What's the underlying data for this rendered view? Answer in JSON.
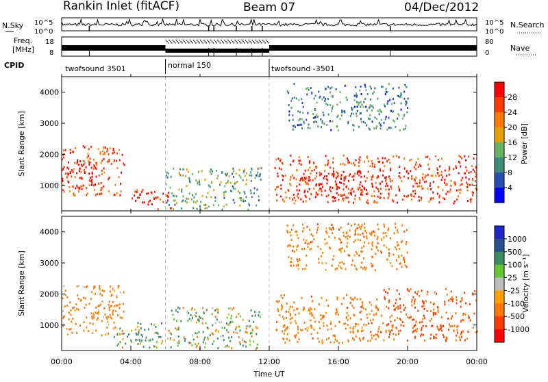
{
  "header": {
    "station": "Rankin Inlet (fitACF)",
    "beam": "Beam 07",
    "date": "04/Dec/2012"
  },
  "top_strip": {
    "nsky_label": "N.Sky",
    "nsearch_label": "N.Search",
    "left_ticks": [
      "10^5",
      "10^0"
    ],
    "right_ticks": [
      "10^5",
      "10^0"
    ]
  },
  "freq_strip": {
    "freq_label_1": "Freq.",
    "freq_label_2": "[MHz]",
    "nave_label": "Nave",
    "left_ticks": [
      "18",
      "8"
    ],
    "right_ticks": [
      "80",
      "0"
    ]
  },
  "cpid": {
    "label": "CPID",
    "segments": [
      {
        "name": "twofsound 3501",
        "start_hour": 0,
        "end_hour": 6
      },
      {
        "name": "normal 150",
        "start_hour": 6,
        "end_hour": 12
      },
      {
        "name": "twofsound -3501",
        "start_hour": 12,
        "end_hour": 24
      }
    ]
  },
  "power_panel": {
    "ylabel": "Slant Range [km]",
    "yticks": [
      "1000",
      "2000",
      "3000",
      "4000"
    ],
    "colorbar_label": "Power [dB]",
    "colorbar_ticks": [
      "4",
      "8",
      "12",
      "16",
      "20",
      "24",
      "28"
    ]
  },
  "velocity_panel": {
    "ylabel": "Slant Range [km]",
    "yticks": [
      "1000",
      "2000",
      "3000",
      "4000"
    ],
    "colorbar_label": "Velocity [m s⁻¹]",
    "colorbar_ticks": [
      "1000",
      "500",
      "100",
      "25",
      "-25",
      "-100",
      "-500",
      "-1000"
    ]
  },
  "xaxis": {
    "label": "Time UT",
    "ticks": [
      "00:00",
      "04:00",
      "08:00",
      "12:00",
      "16:00",
      "20:00",
      "00:00"
    ]
  },
  "colors": {
    "power_scale": [
      "#0000ff",
      "#2850b4",
      "#3c8c78",
      "#64b464",
      "#e6a000",
      "#ff7800",
      "#ff3c00",
      "#ff0000"
    ],
    "velocity_scale": [
      "#1e28c8",
      "#28508c",
      "#3c8c64",
      "#64c832",
      "#bebebe",
      "#ffa000",
      "#ff7800",
      "#ff3c00",
      "#ff0000"
    ]
  },
  "chart_data": [
    {
      "type": "heatmap",
      "title": "Power [dB]",
      "xlabel": "Time UT",
      "ylabel": "Slant Range [km]",
      "xlim": [
        0,
        24
      ],
      "ylim": [
        180,
        4500
      ],
      "zlim": [
        0,
        30
      ],
      "echo_regions": [
        {
          "t_start": 0.0,
          "t_end": 3.6,
          "r_start": 700,
          "r_end": 2300,
          "z": 24
        },
        {
          "t_start": 0.3,
          "t_end": 2.0,
          "r_start": 900,
          "r_end": 1900,
          "z": 28
        },
        {
          "t_start": 4.0,
          "t_end": 6.3,
          "r_start": 250,
          "r_end": 900,
          "z": 27
        },
        {
          "t_start": 6.0,
          "t_end": 11.5,
          "r_start": 250,
          "r_end": 1600,
          "z": 12
        },
        {
          "t_start": 12.3,
          "t_end": 24.0,
          "r_start": 450,
          "r_end": 2000,
          "z": 25
        },
        {
          "t_start": 14.0,
          "t_end": 19.0,
          "r_start": 600,
          "r_end": 1400,
          "z": 29
        },
        {
          "t_start": 13.0,
          "t_end": 20.0,
          "r_start": 2800,
          "r_end": 4300,
          "z": 9
        }
      ]
    },
    {
      "type": "heatmap",
      "title": "Velocity [m s⁻¹]",
      "xlabel": "Time UT",
      "ylabel": "Slant Range [km]",
      "xlim": [
        0,
        24
      ],
      "ylim": [
        180,
        4500
      ],
      "zlim": [
        -1000,
        1000
      ],
      "echo_regions": [
        {
          "t_start": 0.0,
          "t_end": 3.6,
          "r_start": 700,
          "r_end": 2300,
          "z": -250
        },
        {
          "t_start": 3.0,
          "t_end": 6.0,
          "r_start": 300,
          "r_end": 1100,
          "z": 120
        },
        {
          "t_start": 6.0,
          "t_end": 11.5,
          "r_start": 250,
          "r_end": 1600,
          "z": 40
        },
        {
          "t_start": 12.3,
          "t_end": 18.5,
          "r_start": 450,
          "r_end": 2000,
          "z": -300
        },
        {
          "t_start": 18.5,
          "t_end": 24.0,
          "r_start": 500,
          "r_end": 2200,
          "z": -550
        },
        {
          "t_start": 13.0,
          "t_end": 20.0,
          "r_start": 2800,
          "r_end": 4300,
          "z": -300
        }
      ]
    }
  ]
}
